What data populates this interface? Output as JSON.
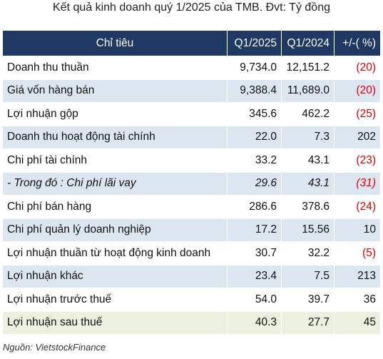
{
  "title": "Kết quả kinh doanh quý 1/2025 của TMB. Đvt: Tỷ đồng",
  "table": {
    "header": [
      "Chỉ tiêu",
      "Q1/2025",
      "Q1/2024",
      "+/-( %)"
    ],
    "rows": [
      [
        "Doanh thu thuần",
        "9,734.0",
        "12,151.2",
        "(20)"
      ],
      [
        "Giá vốn hàng bán",
        "9,388.4",
        "11,689.0",
        "(20)"
      ],
      [
        "Lợi nhuận gộp",
        "345.6",
        "462.2",
        "(25)"
      ],
      [
        "Doanh thu hoạt động tài chính",
        "22.0",
        "7.3",
        "202"
      ],
      [
        "Chi phí tài chính",
        "33.2",
        "43.1",
        "(23)"
      ],
      [
        "- Trong đó : Chi phí lãi vay",
        "29.6",
        "43.1",
        "(31)"
      ],
      [
        "Chi phí bán hàng",
        "286.6",
        "378.6",
        "(24)"
      ],
      [
        "Chi phí quản lý doanh nghiệp",
        "17.2",
        "15.56",
        "10"
      ],
      [
        "Lợi nhuận thuần từ hoạt động kinh doanh",
        "30.7",
        "32.2",
        "(5)"
      ],
      [
        "Lợi nhuận khác",
        "23.4",
        "7.5",
        "213"
      ],
      [
        "Lợi nhuận trước thuế",
        "54.0",
        "39.7",
        "36"
      ],
      [
        "Lợi nhuận sau thuế",
        "40.3",
        "27.7",
        "45"
      ]
    ]
  },
  "source": "Nguồn: VietstockFinance"
}
